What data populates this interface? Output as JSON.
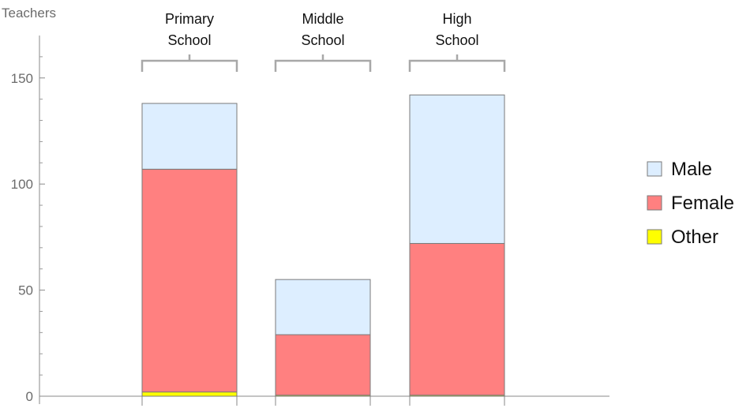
{
  "chart_data": {
    "type": "bar",
    "stacked": true,
    "ylabel": "Teachers",
    "ylim": [
      0,
      170
    ],
    "yticks": [
      0,
      50,
      100,
      150
    ],
    "categories": [
      {
        "name": "Primary School",
        "lines": [
          "Primary",
          "School"
        ]
      },
      {
        "name": "Middle School",
        "lines": [
          "Middle",
          "School"
        ]
      },
      {
        "name": "High School",
        "lines": [
          "High",
          "School"
        ]
      }
    ],
    "series": [
      {
        "name": "Other",
        "color": "#FFFF00",
        "values": [
          2,
          0.5,
          0.5
        ]
      },
      {
        "name": "Female",
        "color": "#FF8080",
        "values": [
          105,
          28.5,
          71.5
        ]
      },
      {
        "name": "Male",
        "color": "#DDEEFF",
        "values": [
          31,
          26,
          70
        ]
      }
    ],
    "legend": {
      "position": "right",
      "order": [
        "Male",
        "Female",
        "Other"
      ]
    },
    "grid": false
  }
}
